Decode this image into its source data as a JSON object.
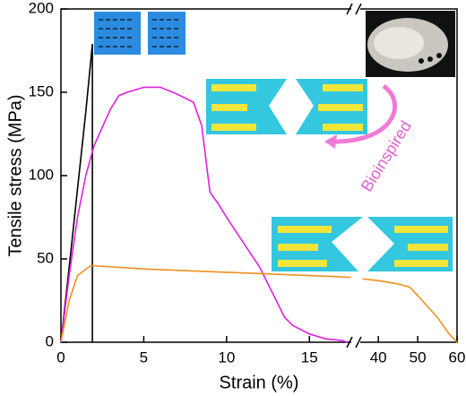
{
  "chart_data": {
    "type": "line",
    "ylabel": "Tensile stress (MPa)",
    "xlabel": "Strain (%)",
    "ylim": [
      0,
      200
    ],
    "yticks": [
      0,
      50,
      100,
      150,
      200
    ],
    "x_segments": [
      {
        "xlim": [
          0,
          17.8
        ],
        "xticks": [
          0,
          5,
          10,
          15
        ]
      },
      {
        "xlim": [
          34.5,
          60
        ],
        "xticks": [
          40,
          50,
          60
        ]
      }
    ],
    "annotations": [
      "Bioinspired"
    ],
    "series": [
      {
        "color": "#000000",
        "x": [
          0,
          0.5,
          1,
          1.5,
          1.9,
          1.9
        ],
        "values": [
          0,
          45,
          92,
          138,
          179,
          0
        ]
      },
      {
        "color": "#e020e0",
        "x": [
          0,
          0.5,
          1,
          1.5,
          2,
          3,
          3.5,
          4,
          5,
          6,
          7,
          8,
          8.5,
          9,
          9.5,
          10,
          11,
          12,
          12.5,
          13,
          13.5,
          14,
          15,
          16,
          17,
          17.3
        ],
        "values": [
          0,
          40,
          75,
          100,
          118,
          140,
          148,
          150,
          153,
          153,
          149,
          144,
          130,
          90,
          83,
          75,
          60,
          45,
          35,
          25,
          15,
          10,
          5,
          2,
          1,
          0
        ]
      },
      {
        "color": "#f09020",
        "x": [
          0,
          0.5,
          1,
          1.8,
          5,
          10,
          15,
          17.5,
          26,
          36,
          40,
          45,
          48,
          50,
          55,
          58,
          60
        ],
        "values": [
          0,
          25,
          40,
          46,
          44,
          42,
          40,
          39,
          null,
          38,
          37,
          35,
          33,
          28,
          15,
          5,
          0
        ]
      }
    ]
  }
}
